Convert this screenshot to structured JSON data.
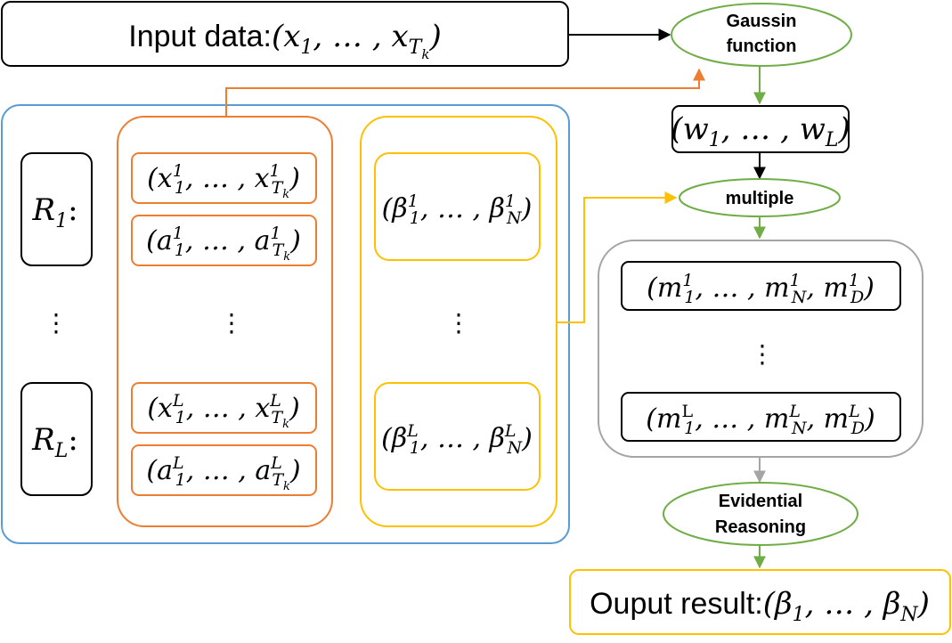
{
  "input_box": {
    "prefix": "Input data:",
    "var": "x",
    "sub_first": "1",
    "sub_last_main": "T",
    "sub_last_sub": "k"
  },
  "gaussian": {
    "line1": "Gaussin",
    "line2": "function"
  },
  "weights": {
    "var": "w",
    "sub_first": "1",
    "sub_last": "L"
  },
  "multiple": {
    "label": "multiple"
  },
  "rules": {
    "first": {
      "var": "R",
      "sub": "1"
    },
    "last": {
      "var": "R",
      "sub": "L"
    },
    "ellipsis": "⋮"
  },
  "attributes": {
    "group1": {
      "x": {
        "var": "x",
        "sup": "1",
        "sub_first": "1",
        "sub_last_main": "T",
        "sub_last_sub": "k"
      },
      "a": {
        "var": "a",
        "sup": "1",
        "sub_first": "1",
        "sub_last_main": "T",
        "sub_last_sub": "k"
      }
    },
    "groupL": {
      "x": {
        "var": "x",
        "sup": "L",
        "sub_first": "1",
        "sub_last_main": "T",
        "sub_last_sub": "k"
      },
      "a": {
        "var": "a",
        "sup": "L",
        "sub_first": "1",
        "sub_last_main": "T",
        "sub_last_sub": "k"
      }
    },
    "ellipsis": "⋮"
  },
  "beliefs": {
    "first": {
      "var": "β",
      "sup": "1",
      "sub_first": "1",
      "sub_last": "N"
    },
    "last": {
      "var": "β",
      "sup": "L",
      "sub_first": "1",
      "sub_last": "N"
    },
    "ellipsis": "⋮"
  },
  "masses": {
    "first": {
      "var": "m",
      "sup": "1",
      "sub_first": "1",
      "sub_mid": "N",
      "sub_last": "D"
    },
    "last": {
      "var": "m",
      "sup_first": "L",
      "sup": "L",
      "sub_first": "1",
      "sub_mid": "N",
      "sub_last": "D"
    },
    "ellipsis": "⋮"
  },
  "evidential": {
    "line1": "Evidential",
    "line2": "Reasoning"
  },
  "output_box": {
    "prefix": "Ouput result:",
    "var": "β",
    "sub_first": "1",
    "sub_last": "N"
  },
  "colors": {
    "black": "#000000",
    "blue": "#5b9bd5",
    "orange": "#ed7d31",
    "yellow": "#ffc000",
    "green": "#70ad47",
    "gray": "#a5a5a5"
  }
}
